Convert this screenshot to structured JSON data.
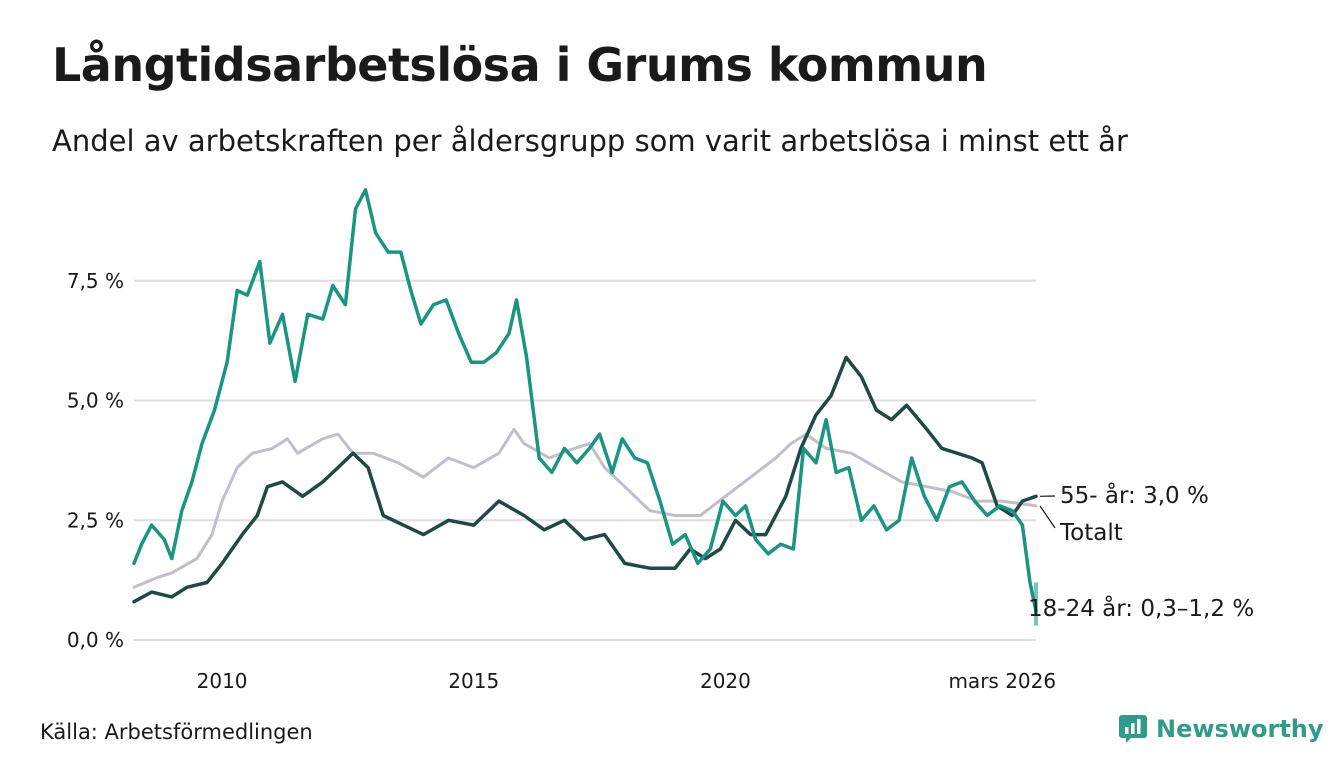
{
  "title": "Långtidsarbetslösa i Grums kommun",
  "subtitle": "Andel av arbetskraften per åldersgrupp som varit arbetslösa i minst ett år",
  "source": "Källa: Arbetsförmedlingen",
  "brand": "Newsworthy",
  "colors": {
    "youth": "#1a9580",
    "senior": "#1f4a44",
    "total": "#c3bdcc",
    "grid": "#dedede",
    "brand": "#2f9c8a"
  },
  "chart_data": {
    "type": "line",
    "x_range": [
      2008.25,
      2026.17
    ],
    "ylim": [
      0,
      9.5
    ],
    "y_ticks": [
      {
        "value": 0,
        "label": "0,0 %"
      },
      {
        "value": 2.5,
        "label": "2,5 %"
      },
      {
        "value": 5,
        "label": "5,0 %"
      },
      {
        "value": 7.5,
        "label": "7,5 %"
      }
    ],
    "x_ticks": [
      {
        "value": 2010,
        "label": "2010"
      },
      {
        "value": 2015,
        "label": "2015"
      },
      {
        "value": 2020,
        "label": "2020"
      },
      {
        "value": 2025.5,
        "label": "mars 2026"
      }
    ],
    "series": [
      {
        "name": "Totalt",
        "label": "Totalt",
        "color_key": "total",
        "points": [
          [
            2008.25,
            1.1
          ],
          [
            2008.7,
            1.3
          ],
          [
            2009,
            1.4
          ],
          [
            2009.5,
            1.7
          ],
          [
            2009.8,
            2.2
          ],
          [
            2010,
            2.9
          ],
          [
            2010.3,
            3.6
          ],
          [
            2010.6,
            3.9
          ],
          [
            2011,
            4.0
          ],
          [
            2011.3,
            4.2
          ],
          [
            2011.5,
            3.9
          ],
          [
            2012,
            4.2
          ],
          [
            2012.3,
            4.3
          ],
          [
            2012.6,
            3.9
          ],
          [
            2013,
            3.9
          ],
          [
            2013.5,
            3.7
          ],
          [
            2014,
            3.4
          ],
          [
            2014.5,
            3.8
          ],
          [
            2015,
            3.6
          ],
          [
            2015.5,
            3.9
          ],
          [
            2015.8,
            4.4
          ],
          [
            2016,
            4.1
          ],
          [
            2016.5,
            3.8
          ],
          [
            2017,
            4.0
          ],
          [
            2017.3,
            4.1
          ],
          [
            2017.6,
            3.6
          ],
          [
            2018,
            3.2
          ],
          [
            2018.5,
            2.7
          ],
          [
            2019,
            2.6
          ],
          [
            2019.5,
            2.6
          ],
          [
            2020,
            3.0
          ],
          [
            2020.5,
            3.4
          ],
          [
            2021,
            3.8
          ],
          [
            2021.3,
            4.1
          ],
          [
            2021.6,
            4.3
          ],
          [
            2022,
            4.0
          ],
          [
            2022.5,
            3.9
          ],
          [
            2023,
            3.6
          ],
          [
            2023.5,
            3.3
          ],
          [
            2024,
            3.2
          ],
          [
            2024.5,
            3.1
          ],
          [
            2025,
            2.9
          ],
          [
            2025.5,
            2.9
          ],
          [
            2026.17,
            2.8
          ]
        ]
      },
      {
        "name": "55- år",
        "label": "55- år: 3,0 %",
        "color_key": "senior",
        "points": [
          [
            2008.25,
            0.8
          ],
          [
            2008.6,
            1.0
          ],
          [
            2009,
            0.9
          ],
          [
            2009.3,
            1.1
          ],
          [
            2009.7,
            1.2
          ],
          [
            2010,
            1.6
          ],
          [
            2010.4,
            2.2
          ],
          [
            2010.7,
            2.6
          ],
          [
            2010.9,
            3.2
          ],
          [
            2011.2,
            3.3
          ],
          [
            2011.6,
            3.0
          ],
          [
            2012,
            3.3
          ],
          [
            2012.3,
            3.6
          ],
          [
            2012.6,
            3.9
          ],
          [
            2012.9,
            3.6
          ],
          [
            2013.2,
            2.6
          ],
          [
            2013.6,
            2.4
          ],
          [
            2014,
            2.2
          ],
          [
            2014.5,
            2.5
          ],
          [
            2015,
            2.4
          ],
          [
            2015.5,
            2.9
          ],
          [
            2016,
            2.6
          ],
          [
            2016.4,
            2.3
          ],
          [
            2016.8,
            2.5
          ],
          [
            2017.2,
            2.1
          ],
          [
            2017.6,
            2.2
          ],
          [
            2018,
            1.6
          ],
          [
            2018.5,
            1.5
          ],
          [
            2019,
            1.5
          ],
          [
            2019.3,
            1.9
          ],
          [
            2019.6,
            1.7
          ],
          [
            2019.9,
            1.9
          ],
          [
            2020.2,
            2.5
          ],
          [
            2020.5,
            2.2
          ],
          [
            2020.8,
            2.2
          ],
          [
            2021.2,
            3.0
          ],
          [
            2021.5,
            4.0
          ],
          [
            2021.8,
            4.7
          ],
          [
            2022.1,
            5.1
          ],
          [
            2022.4,
            5.9
          ],
          [
            2022.7,
            5.5
          ],
          [
            2023.0,
            4.8
          ],
          [
            2023.3,
            4.6
          ],
          [
            2023.6,
            4.9
          ],
          [
            2024,
            4.4
          ],
          [
            2024.3,
            4.0
          ],
          [
            2024.6,
            3.9
          ],
          [
            2024.9,
            3.8
          ],
          [
            2025.1,
            3.7
          ],
          [
            2025.4,
            2.8
          ],
          [
            2025.7,
            2.6
          ],
          [
            2025.9,
            2.9
          ],
          [
            2026.17,
            3.0
          ]
        ]
      },
      {
        "name": "18-24 år",
        "label": "18-24 år: 0,3–1,2 %",
        "color_key": "youth",
        "points": [
          [
            2008.25,
            1.6
          ],
          [
            2008.4,
            2.0
          ],
          [
            2008.6,
            2.4
          ],
          [
            2008.85,
            2.1
          ],
          [
            2009.0,
            1.7
          ],
          [
            2009.2,
            2.7
          ],
          [
            2009.4,
            3.3
          ],
          [
            2009.6,
            4.1
          ],
          [
            2009.85,
            4.8
          ],
          [
            2010.1,
            5.8
          ],
          [
            2010.3,
            7.3
          ],
          [
            2010.5,
            7.2
          ],
          [
            2010.75,
            7.9
          ],
          [
            2010.95,
            6.2
          ],
          [
            2011.2,
            6.8
          ],
          [
            2011.45,
            5.4
          ],
          [
            2011.7,
            6.8
          ],
          [
            2012.0,
            6.7
          ],
          [
            2012.2,
            7.4
          ],
          [
            2012.45,
            7.0
          ],
          [
            2012.65,
            9.0
          ],
          [
            2012.85,
            9.4
          ],
          [
            2013.05,
            8.5
          ],
          [
            2013.3,
            8.1
          ],
          [
            2013.55,
            8.1
          ],
          [
            2013.75,
            7.3
          ],
          [
            2013.95,
            6.6
          ],
          [
            2014.2,
            7.0
          ],
          [
            2014.45,
            7.1
          ],
          [
            2014.7,
            6.4
          ],
          [
            2014.95,
            5.8
          ],
          [
            2015.2,
            5.8
          ],
          [
            2015.45,
            6.0
          ],
          [
            2015.7,
            6.4
          ],
          [
            2015.85,
            7.1
          ],
          [
            2016.05,
            5.9
          ],
          [
            2016.3,
            3.8
          ],
          [
            2016.55,
            3.5
          ],
          [
            2016.8,
            4.0
          ],
          [
            2017.05,
            3.7
          ],
          [
            2017.3,
            4.0
          ],
          [
            2017.5,
            4.3
          ],
          [
            2017.75,
            3.5
          ],
          [
            2017.95,
            4.2
          ],
          [
            2018.2,
            3.8
          ],
          [
            2018.45,
            3.7
          ],
          [
            2018.7,
            2.9
          ],
          [
            2018.95,
            2.0
          ],
          [
            2019.2,
            2.2
          ],
          [
            2019.45,
            1.6
          ],
          [
            2019.7,
            1.9
          ],
          [
            2019.95,
            2.9
          ],
          [
            2020.2,
            2.6
          ],
          [
            2020.4,
            2.8
          ],
          [
            2020.6,
            2.1
          ],
          [
            2020.85,
            1.8
          ],
          [
            2021.1,
            2.0
          ],
          [
            2021.35,
            1.9
          ],
          [
            2021.55,
            4.0
          ],
          [
            2021.8,
            3.7
          ],
          [
            2022.0,
            4.6
          ],
          [
            2022.2,
            3.5
          ],
          [
            2022.45,
            3.6
          ],
          [
            2022.7,
            2.5
          ],
          [
            2022.95,
            2.8
          ],
          [
            2023.2,
            2.3
          ],
          [
            2023.45,
            2.5
          ],
          [
            2023.7,
            3.8
          ],
          [
            2023.95,
            3.0
          ],
          [
            2024.2,
            2.5
          ],
          [
            2024.45,
            3.2
          ],
          [
            2024.7,
            3.3
          ],
          [
            2024.95,
            2.9
          ],
          [
            2025.2,
            2.6
          ],
          [
            2025.45,
            2.8
          ],
          [
            2025.7,
            2.7
          ],
          [
            2025.9,
            2.4
          ],
          [
            2026.05,
            1.2
          ],
          [
            2026.17,
            0.6
          ]
        ]
      }
    ],
    "range_band": {
      "series": "18-24 år",
      "x": 2026.17,
      "low": 0.3,
      "high": 1.2
    }
  }
}
